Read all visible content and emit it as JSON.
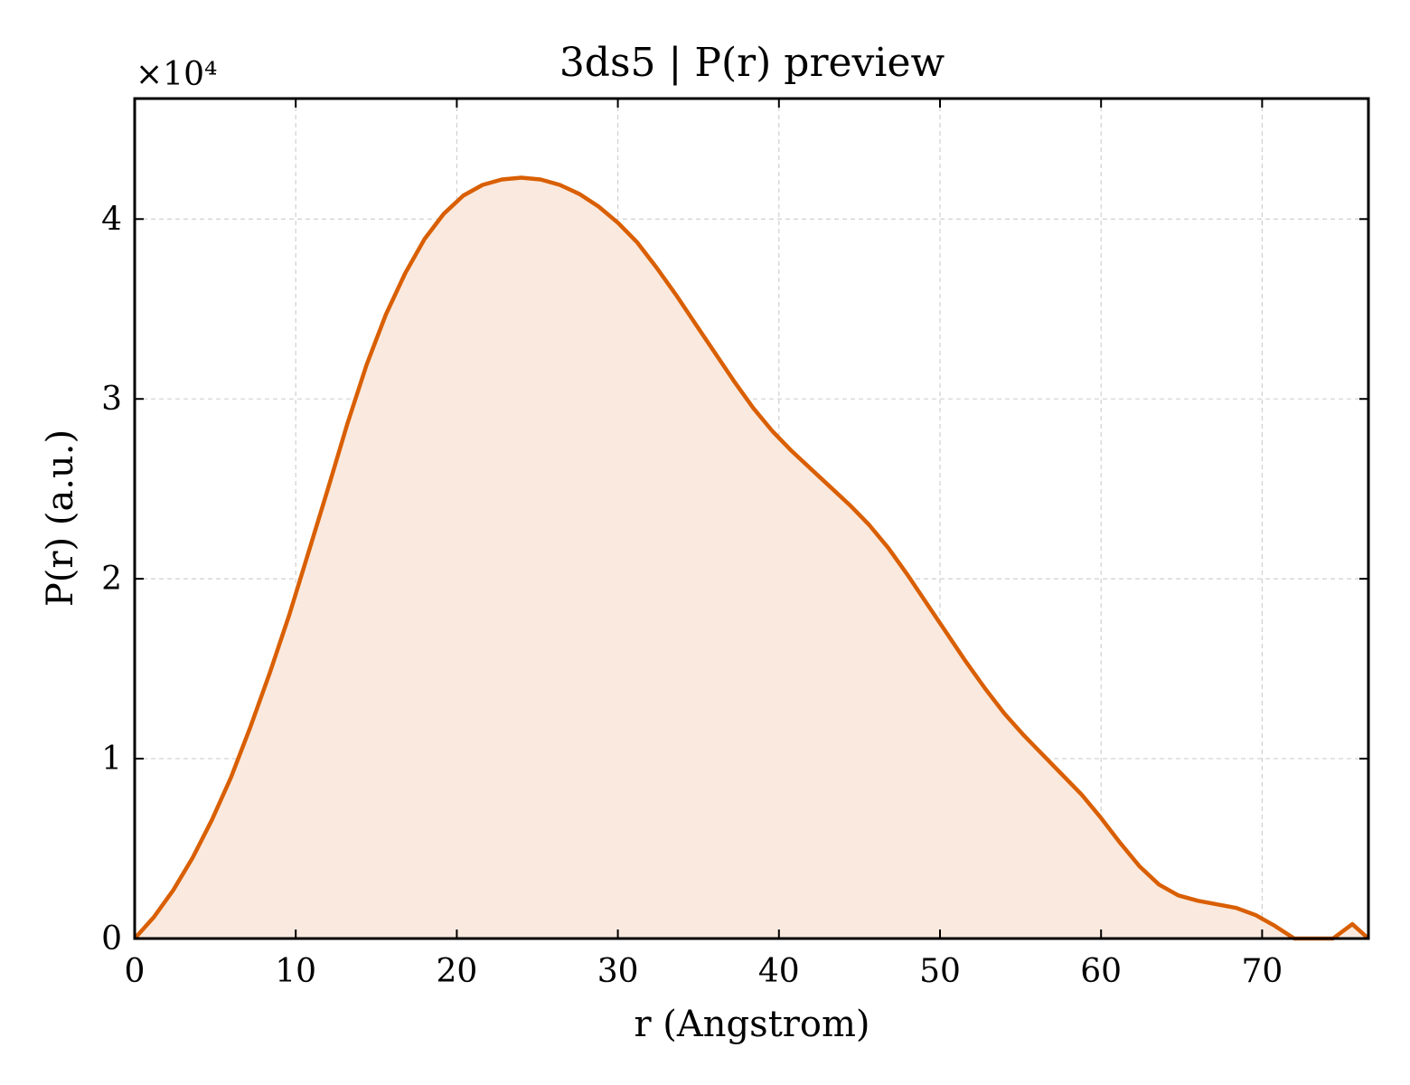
{
  "chart_data": {
    "type": "area",
    "title": "3ds5 | P(r) preview",
    "xlabel": "r (Angstrom)",
    "ylabel": "P(r) (a.u.)",
    "y_offset_label": "×10⁴",
    "y_scale_factor": 10000,
    "xlim": [
      0,
      76.6
    ],
    "ylim": [
      0,
      46700
    ],
    "xticks": [
      0,
      10,
      20,
      30,
      40,
      50,
      60,
      70
    ],
    "yticks": [
      0,
      10000,
      20000,
      30000,
      40000
    ],
    "ytick_labels": [
      "0",
      "1",
      "2",
      "3",
      "4"
    ],
    "grid": true,
    "line_color": "#d95f02",
    "fill_color": "#fae9de",
    "series": [
      {
        "x": [
          0,
          1.2,
          2.4,
          3.6,
          4.8,
          6.0,
          7.2,
          8.4,
          9.6,
          10.8,
          12.0,
          13.2,
          14.4,
          15.6,
          16.8,
          18.0,
          19.2,
          20.4,
          21.6,
          22.8,
          24.0,
          25.2,
          26.4,
          27.6,
          28.8,
          30.0,
          31.2,
          32.4,
          33.6,
          34.8,
          36.0,
          37.2,
          38.4,
          39.6,
          40.8,
          42.0,
          43.2,
          44.4,
          45.6,
          46.8,
          48.0,
          49.2,
          50.4,
          51.6,
          52.8,
          54.0,
          55.2,
          56.4,
          57.6,
          58.8,
          60.0,
          61.2,
          62.4,
          63.6,
          64.8,
          66.0,
          67.2,
          68.4,
          69.6,
          70.8,
          72.0,
          73.2,
          74.4,
          75.6,
          76.6
        ],
        "y": [
          0,
          1200,
          2700,
          4500,
          6600,
          9000,
          11800,
          14800,
          18000,
          21500,
          25000,
          28600,
          31900,
          34700,
          37000,
          38900,
          40300,
          41300,
          41900,
          42200,
          42300,
          42200,
          41900,
          41400,
          40700,
          39800,
          38700,
          37300,
          35800,
          34200,
          32600,
          31000,
          29500,
          28200,
          27100,
          26100,
          25100,
          24100,
          23000,
          21700,
          20200,
          18600,
          17000,
          15400,
          13900,
          12500,
          11300,
          10200,
          9100,
          8000,
          6700,
          5300,
          4000,
          3000,
          2400,
          2100,
          1900,
          1700,
          1300,
          700,
          0,
          0,
          0,
          800,
          0
        ]
      }
    ]
  }
}
